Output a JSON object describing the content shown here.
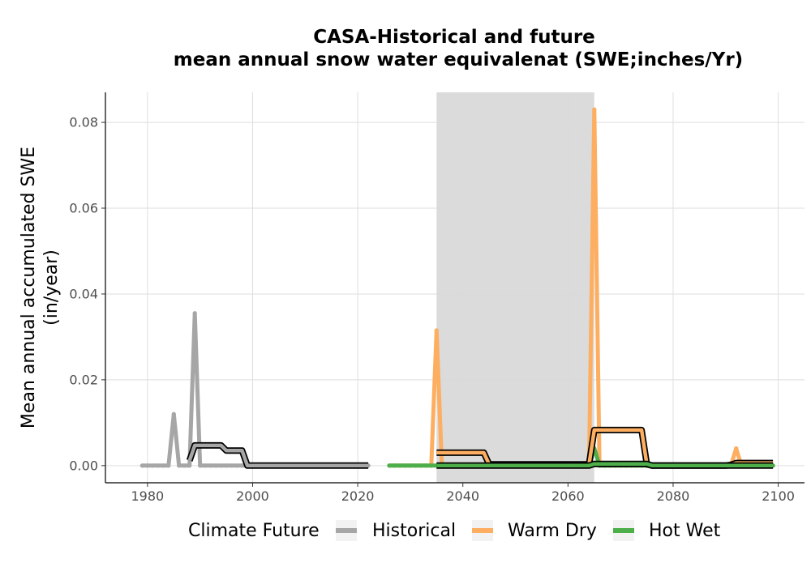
{
  "chart_data": {
    "type": "line",
    "title_line1": "CASA-Historical and future",
    "title_line2": "mean annual snow water equivalenat (SWE;inches/Yr)",
    "ylabel_line1": "Mean annual accumulated SWE",
    "ylabel_line2": "(in/year)",
    "xlabel": "",
    "xlim": [
      1972,
      2105
    ],
    "ylim": [
      -0.004,
      0.087
    ],
    "x_ticks": [
      1980,
      2000,
      2020,
      2040,
      2060,
      2080,
      2100
    ],
    "y_ticks": [
      0.0,
      0.02,
      0.04,
      0.06,
      0.08
    ],
    "y_tick_labels": [
      "0.00",
      "0.02",
      "0.04",
      "0.06",
      "0.08"
    ],
    "grid": true,
    "shaded_period": [
      2035,
      2065
    ],
    "legend": {
      "title": "Climate Future",
      "position": "bottom",
      "entries": [
        "Historical",
        "Warm Dry",
        "Hot Wet"
      ]
    },
    "series": [
      {
        "name": "Historical",
        "color": "#a6a6a6",
        "x": [
          1979,
          1980,
          1981,
          1982,
          1983,
          1984,
          1985,
          1986,
          1987,
          1988,
          1989,
          1990,
          1991,
          1992,
          1993,
          1994,
          1995,
          1996,
          1997,
          1998,
          1999,
          2000,
          2001,
          2002,
          2003,
          2004,
          2005,
          2006,
          2007,
          2008,
          2009,
          2010,
          2011,
          2012,
          2013,
          2014,
          2015,
          2016,
          2017,
          2018,
          2019,
          2020,
          2021,
          2022
        ],
        "values": [
          0,
          0,
          0,
          0,
          0,
          0,
          0.012,
          0,
          0,
          0,
          0.0355,
          0,
          0,
          0,
          0,
          0,
          0,
          0,
          0,
          0,
          0,
          0,
          0,
          0,
          0,
          0,
          0,
          0,
          0,
          0,
          0,
          0,
          0,
          0,
          0,
          0,
          0,
          0,
          0,
          0,
          0,
          0,
          0,
          0
        ]
      },
      {
        "name": "Warm Dry",
        "color": "#fdae61",
        "x": [
          2026,
          2027,
          2028,
          2029,
          2030,
          2031,
          2032,
          2033,
          2034,
          2035,
          2036,
          2037,
          2038,
          2039,
          2040,
          2041,
          2042,
          2043,
          2044,
          2045,
          2046,
          2047,
          2048,
          2049,
          2050,
          2051,
          2052,
          2053,
          2054,
          2055,
          2056,
          2057,
          2058,
          2059,
          2060,
          2061,
          2062,
          2063,
          2064,
          2065,
          2066,
          2067,
          2068,
          2069,
          2070,
          2071,
          2072,
          2073,
          2074,
          2075,
          2076,
          2077,
          2078,
          2079,
          2080,
          2081,
          2082,
          2083,
          2084,
          2085,
          2086,
          2087,
          2088,
          2089,
          2090,
          2091,
          2092,
          2093,
          2094,
          2095,
          2096,
          2097,
          2098,
          2099
        ],
        "values": [
          0,
          0,
          0,
          0,
          0,
          0,
          0,
          0,
          0,
          0.0315,
          0,
          0,
          0,
          0,
          0,
          0,
          0,
          0,
          0,
          0,
          0,
          0,
          0,
          0,
          0,
          0,
          0,
          0,
          0,
          0,
          0,
          0,
          0,
          0,
          0,
          0,
          0,
          0,
          0,
          0.083,
          0,
          0,
          0,
          0,
          0,
          0,
          0,
          0,
          0,
          0,
          0,
          0,
          0,
          0,
          0,
          0,
          0,
          0,
          0,
          0,
          0,
          0,
          0,
          0,
          0,
          0,
          0.004,
          0,
          0,
          0,
          0,
          0,
          0,
          0
        ]
      },
      {
        "name": "Hot Wet",
        "color": "#4daf4a",
        "x": [
          2026,
          2027,
          2028,
          2029,
          2030,
          2031,
          2032,
          2033,
          2034,
          2035,
          2036,
          2037,
          2038,
          2039,
          2040,
          2041,
          2042,
          2043,
          2044,
          2045,
          2046,
          2047,
          2048,
          2049,
          2050,
          2051,
          2052,
          2053,
          2054,
          2055,
          2056,
          2057,
          2058,
          2059,
          2060,
          2061,
          2062,
          2063,
          2064,
          2065,
          2066,
          2067,
          2068,
          2069,
          2070,
          2071,
          2072,
          2073,
          2074,
          2075,
          2076,
          2077,
          2078,
          2079,
          2080,
          2081,
          2082,
          2083,
          2084,
          2085,
          2086,
          2087,
          2088,
          2089,
          2090,
          2091,
          2092,
          2093,
          2094,
          2095,
          2096,
          2097,
          2098,
          2099
        ],
        "values": [
          0,
          0,
          0,
          0,
          0,
          0,
          0,
          0,
          0,
          0,
          0,
          0,
          0,
          0,
          0,
          0,
          0,
          0,
          0,
          0,
          0,
          0,
          0,
          0,
          0,
          0,
          0,
          0,
          0,
          0,
          0,
          0,
          0,
          0,
          0,
          0,
          0,
          0,
          0,
          0.004,
          0,
          0,
          0,
          0,
          0,
          0,
          0,
          0,
          0,
          0,
          0,
          0,
          0,
          0,
          0,
          0,
          0,
          0,
          0,
          0,
          0,
          0,
          0,
          0,
          0,
          0,
          0,
          0,
          0,
          0,
          0,
          0,
          0,
          0
        ]
      }
    ],
    "moving_averages": [
      {
        "name": "Historical",
        "color": "#a6a6a6",
        "x": [
          1988,
          1989,
          1990,
          1991,
          1992,
          1993,
          1994,
          1995,
          1996,
          1997,
          1998,
          1999,
          2000,
          2005,
          2010,
          2015,
          2020,
          2022
        ],
        "values": [
          0.0012,
          0.0047,
          0.0047,
          0.0047,
          0.0047,
          0.0047,
          0.0047,
          0.0035,
          0.0035,
          0.0035,
          0.0035,
          0,
          0,
          0,
          0,
          0,
          0,
          0
        ]
      },
      {
        "name": "Warm Dry",
        "color": "#fdae61",
        "x": [
          2035,
          2036,
          2040,
          2044,
          2045,
          2046,
          2050,
          2055,
          2060,
          2064,
          2065,
          2066,
          2070,
          2074,
          2075,
          2076,
          2080,
          2085,
          2090,
          2091,
          2092,
          2095,
          2099
        ],
        "values": [
          0.003,
          0.003,
          0.003,
          0.003,
          0.0003,
          0.0003,
          0.0003,
          0.0003,
          0.0003,
          0.0003,
          0.0083,
          0.0083,
          0.0083,
          0.0083,
          0.0003,
          0,
          0,
          0,
          0,
          0.0002,
          0.0006,
          0.0006,
          0.0006
        ]
      },
      {
        "name": "Hot Wet",
        "color": "#4daf4a",
        "x": [
          2035,
          2040,
          2045,
          2050,
          2055,
          2060,
          2064,
          2065,
          2070,
          2075,
          2076,
          2080,
          2085,
          2090,
          2092,
          2095,
          2099
        ],
        "values": [
          0,
          0,
          0,
          0,
          0,
          0,
          0,
          0.0004,
          0.0004,
          0.0004,
          0,
          0,
          0,
          0,
          0,
          0,
          0
        ]
      }
    ]
  }
}
